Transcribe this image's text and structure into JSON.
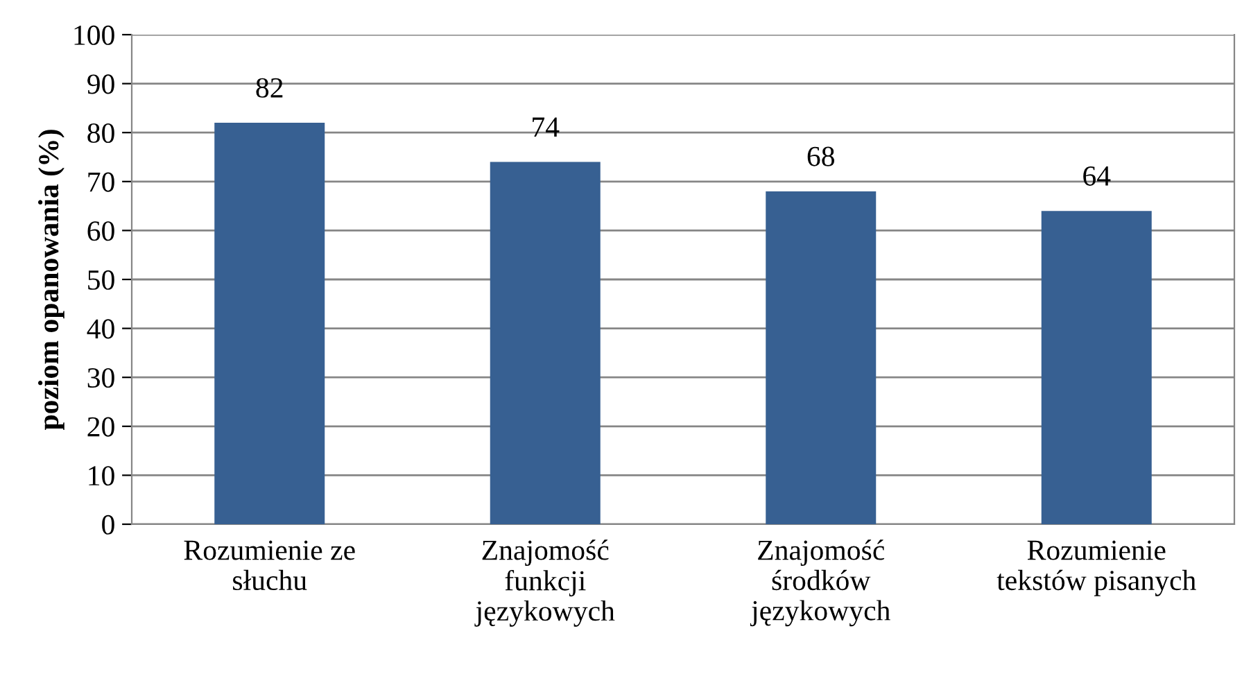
{
  "chart_data": {
    "type": "bar",
    "ylabel": "poziom opanowania (%)",
    "categories": [
      "Rozumienie ze\nsłuchu",
      "Znajomość\nfunkcji\njęzykowych",
      "Znajomość\nśrodków\njęzykowych",
      "Rozumienie\ntekstów pisanych"
    ],
    "values": [
      82,
      74,
      68,
      64
    ],
    "color": "#376092",
    "ylim": [
      0,
      100
    ],
    "yticks": [
      0,
      10,
      20,
      30,
      40,
      50,
      60,
      70,
      80,
      90,
      100
    ],
    "grid": "y",
    "data_labels": true
  }
}
